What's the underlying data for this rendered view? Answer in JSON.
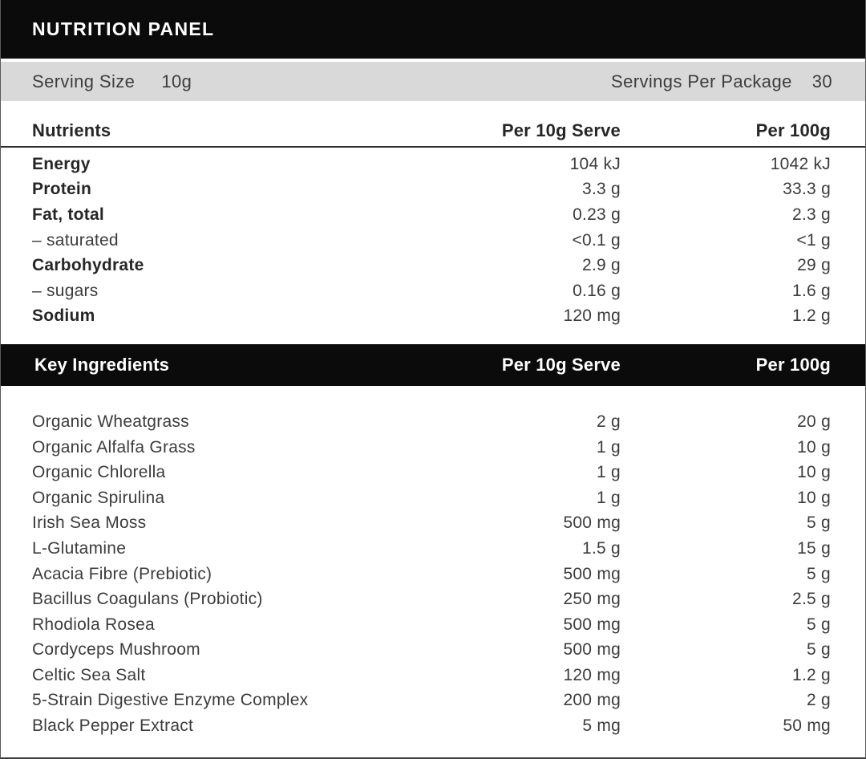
{
  "title": "NUTRITION PANEL",
  "serving": {
    "size_label": "Serving Size",
    "size_value": "10g",
    "per_package_label": "Servings Per Package",
    "per_package_value": "30"
  },
  "nutrients": {
    "headers": [
      "Nutrients",
      "Per 10g Serve",
      "Per 100g"
    ],
    "rows": [
      {
        "label": "Energy",
        "per_serve": "104 kJ",
        "per_100g": "1042 kJ"
      },
      {
        "label": "Protein",
        "per_serve": "3.3 g",
        "per_100g": "33.3 g"
      },
      {
        "label": "Fat, total",
        "per_serve": "0.23 g",
        "per_100g": "2.3 g"
      },
      {
        "label": "– saturated",
        "per_serve": "<0.1 g",
        "per_100g": "<1 g"
      },
      {
        "label": "Carbohydrate",
        "per_serve": "2.9 g",
        "per_100g": "29 g"
      },
      {
        "label": "– sugars",
        "per_serve": "0.16 g",
        "per_100g": "1.6 g"
      },
      {
        "label": "Sodium",
        "per_serve": "120 mg",
        "per_100g": "1.2 g"
      }
    ]
  },
  "ingredients": {
    "headers": [
      "Key Ingredients",
      "Per 10g Serve",
      "Per 100g"
    ],
    "rows": [
      {
        "label": "Organic Wheatgrass",
        "per_serve": "2 g",
        "per_100g": "20 g"
      },
      {
        "label": "Organic Alfalfa Grass",
        "per_serve": "1 g",
        "per_100g": "10 g"
      },
      {
        "label": "Organic Chlorella",
        "per_serve": "1 g",
        "per_100g": "10 g"
      },
      {
        "label": "Organic Spirulina",
        "per_serve": "1 g",
        "per_100g": "10 g"
      },
      {
        "label": "Irish Sea Moss",
        "per_serve": "500 mg",
        "per_100g": "5 g"
      },
      {
        "label": "L-Glutamine",
        "per_serve": "1.5 g",
        "per_100g": "15 g"
      },
      {
        "label": "Acacia Fibre (Prebiotic)",
        "per_serve": "500 mg",
        "per_100g": "5 g"
      },
      {
        "label": "Bacillus Coagulans (Probiotic)",
        "per_serve": "250 mg",
        "per_100g": "2.5 g"
      },
      {
        "label": "Rhodiola Rosea",
        "per_serve": "500 mg",
        "per_100g": "5 g"
      },
      {
        "label": "Cordyceps Mushroom",
        "per_serve": "500 mg",
        "per_100g": "5 g"
      },
      {
        "label": "Celtic Sea Salt",
        "per_serve": "120 mg",
        "per_100g": "1.2 g"
      },
      {
        "label": "5-Strain Digestive Enzyme Complex",
        "per_serve": "200 mg",
        "per_100g": "2 g"
      },
      {
        "label": "Black Pepper Extract",
        "per_serve": "5 mg",
        "per_100g": "50 mg"
      }
    ]
  },
  "colors": {
    "header_bar": "#0b0b0b",
    "serving_bar": "#d9d9d9",
    "rule": "#2e2e2e",
    "text_strong": "#262626",
    "text_regular": "#3c3c3c"
  }
}
